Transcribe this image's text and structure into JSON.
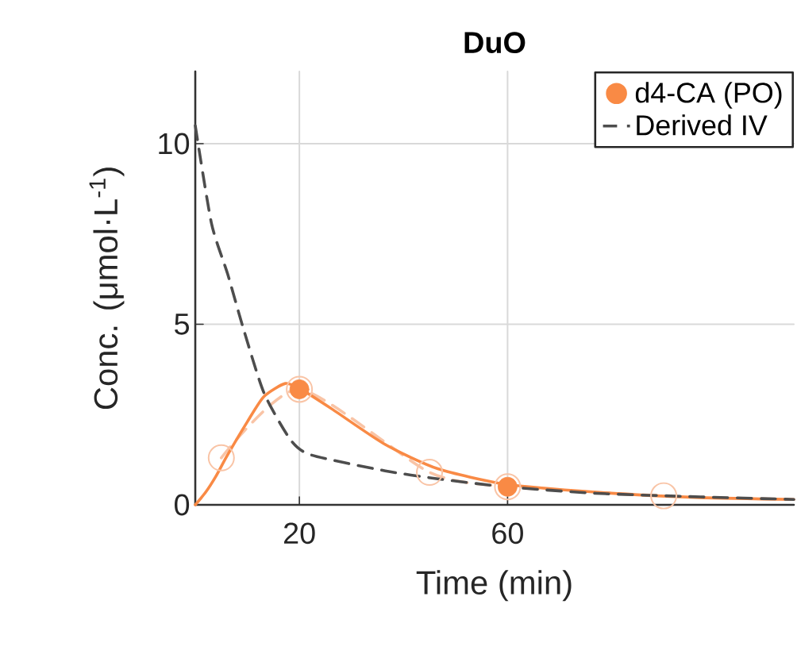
{
  "chart_data": {
    "type": "line",
    "title": "DuO",
    "xlabel": "Time (min)",
    "ylabel": "Conc. (μmol·L$^{-1}$)",
    "xlim": [
      0,
      115
    ],
    "ylim": [
      0,
      12
    ],
    "xticks": [
      20,
      60
    ],
    "yticks": [
      0,
      5,
      10
    ],
    "grid": true,
    "legend": "top right",
    "series": [
      {
        "color": "#f9c4a6",
        "marker": "circle",
        "line_style": "dashed",
        "x": [
          5,
          20,
          45,
          60,
          90
        ],
        "values": [
          1.3,
          3.2,
          0.9,
          0.5,
          0.25
        ]
      },
      {
        "color": "#f98a45",
        "marker": "none",
        "line_style": "solid",
        "x": [
          0,
          2,
          4,
          6.2,
          10,
          13.2,
          17.3,
          20.3,
          26.4,
          36.5,
          46.6,
          59.7,
          76.9,
          97,
          115
        ],
        "values": [
          0,
          0.35,
          0.8,
          1.38,
          2.3,
          3.0,
          3.36,
          3.2,
          2.64,
          1.67,
          1.0,
          0.57,
          0.35,
          0.2,
          0.15
        ]
      },
      {
        "type": "scatter",
        "name": "d4-CA (PO)",
        "color": "#f98a45",
        "marker": "circle",
        "x": [
          20,
          60
        ],
        "values": [
          3.2,
          0.5
        ]
      },
      {
        "name": "Derived IV",
        "color": "#4d4d4d",
        "marker": "none",
        "line_style": "dashed",
        "x": [
          0,
          3.1,
          6.2,
          9.2,
          13.2,
          18.3,
          22.3,
          36.5,
          46.6,
          59.7,
          76.9,
          97,
          115
        ],
        "values": [
          10.5,
          7.8,
          6.4,
          4.9,
          3.1,
          1.8,
          1.38,
          0.94,
          0.72,
          0.5,
          0.32,
          0.22,
          0.15
        ]
      }
    ]
  }
}
